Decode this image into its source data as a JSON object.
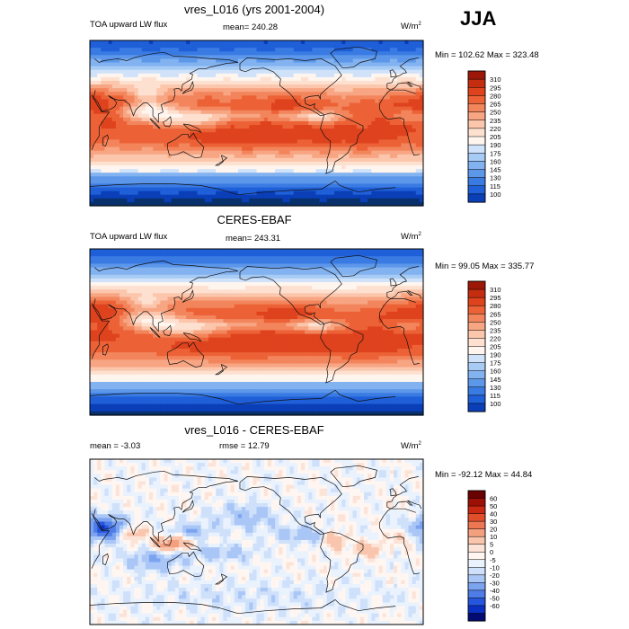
{
  "season": "JJA",
  "palettes": {
    "abs": [
      "#08306b",
      "#0a3fb8",
      "#1f5fd8",
      "#3a7be3",
      "#5c97ea",
      "#82b2f0",
      "#a7cbf5",
      "#cfe2fa",
      "#fff5ef",
      "#fde0cf",
      "#fbc6ac",
      "#f7a582",
      "#f3855c",
      "#ec6236",
      "#df431e",
      "#c42d10",
      "#9c1707",
      "#6b0703"
    ],
    "diff": [
      "#020b73",
      "#0a30c2",
      "#2756de",
      "#4f7de8",
      "#7ca3f0",
      "#a9c6f6",
      "#cfe0fa",
      "#e9f2fd",
      "#fff6f2",
      "#fce3d7",
      "#f9c5ad",
      "#f4a07f",
      "#ec7752",
      "#e04e2c",
      "#c92812",
      "#9d1005",
      "#6b0202"
    ]
  },
  "chart_data": [
    {
      "type": "heatmap",
      "id": "panel1",
      "title": "vres_L016 (yrs 2001-2004)",
      "left_label": "TOA upward LW flux",
      "center_label": "mean= 240.28",
      "units_base": "W/m",
      "units_exp": "2",
      "minmax": "Min = 102.62 Max = 323.48",
      "min": 102.62,
      "max": 323.48,
      "mean": 240.28,
      "levels": [
        "310",
        "295",
        "280",
        "265",
        "250",
        "235",
        "220",
        "205",
        "190",
        "175",
        "160",
        "145",
        "130",
        "115",
        "100"
      ],
      "field": "lw_model"
    },
    {
      "type": "heatmap",
      "id": "panel2",
      "title": "CERES-EBAF",
      "left_label": "TOA upward LW flux",
      "center_label": "mean= 243.31",
      "units_base": "W/m",
      "units_exp": "2",
      "minmax": "Min =  99.05 Max = 335.77",
      "min": 99.05,
      "max": 335.77,
      "mean": 243.31,
      "levels": [
        "310",
        "295",
        "280",
        "265",
        "250",
        "235",
        "220",
        "205",
        "190",
        "175",
        "160",
        "145",
        "130",
        "115",
        "100"
      ],
      "field": "lw_obs"
    },
    {
      "type": "heatmap",
      "id": "panel3",
      "title": "vres_L016 - CERES-EBAF",
      "left_label": "mean =  -3.03",
      "center_label": "rmse =  12.79",
      "units_base": "W/m",
      "units_exp": "2",
      "minmax": "Min = -92.12 Max =  44.84",
      "min": -92.12,
      "max": 44.84,
      "mean": -3.03,
      "rmse": 12.79,
      "levels": [
        "60",
        "50",
        "40",
        "30",
        "20",
        "10",
        "5",
        "0",
        "-5",
        "-10",
        "-20",
        "-30",
        "-40",
        "-50",
        "-60"
      ],
      "field": "diff"
    }
  ]
}
